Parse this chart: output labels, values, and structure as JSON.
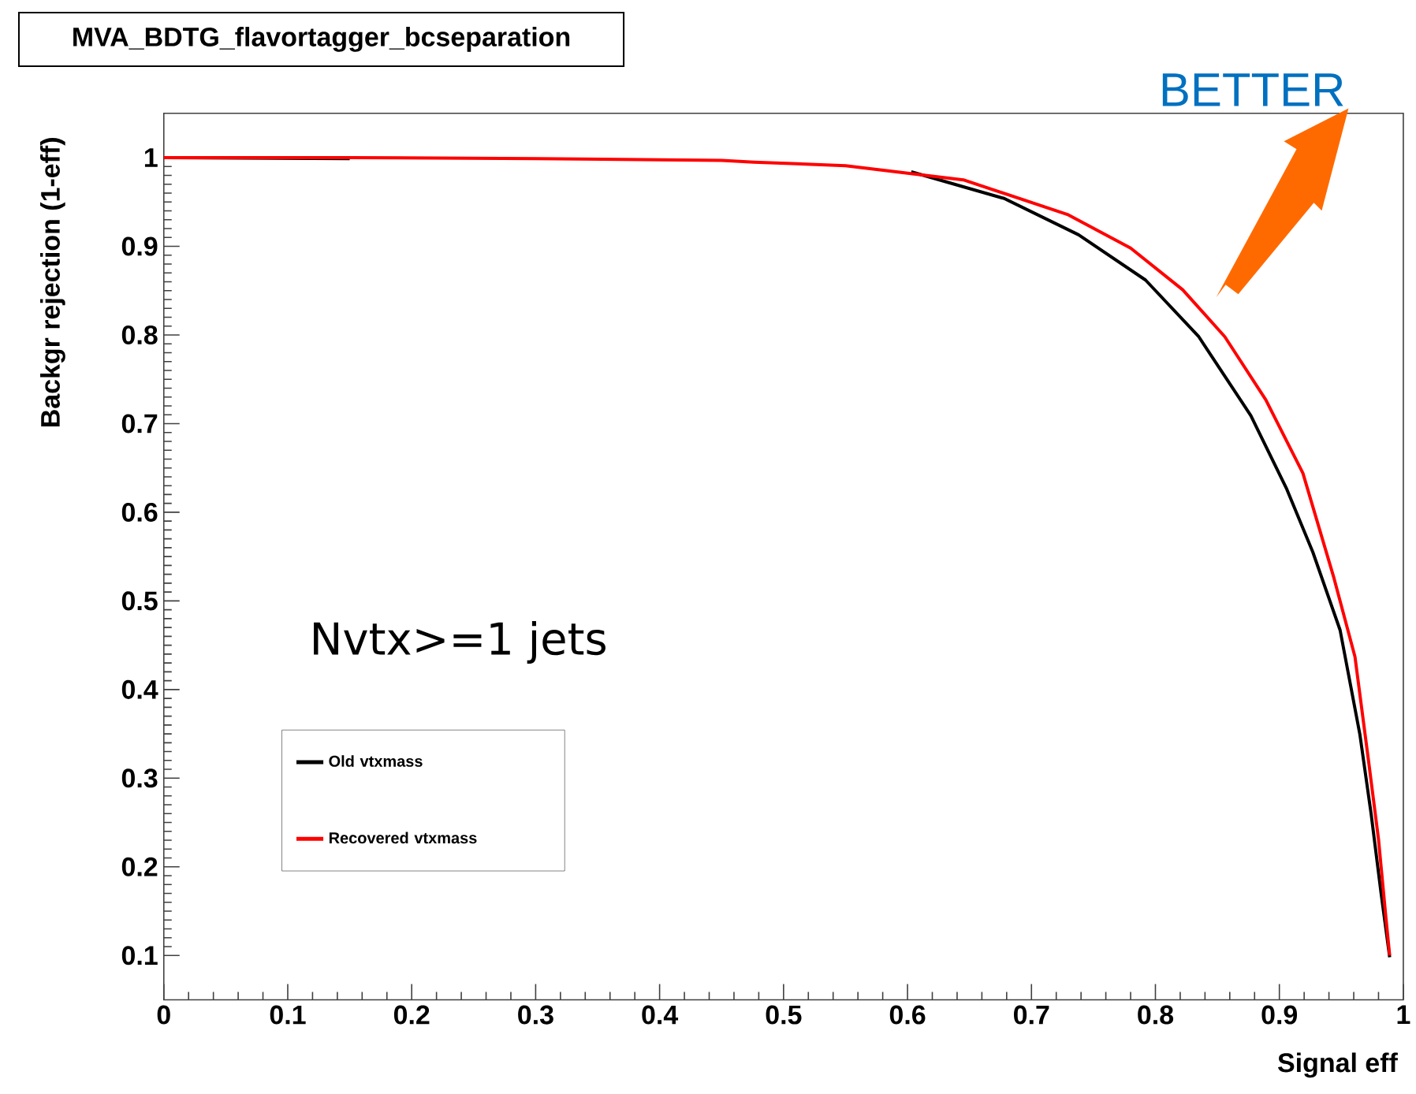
{
  "chart_data": {
    "type": "line",
    "title": "MVA_BDTG_flavortagger_bcseparation",
    "xlabel": "Signal eff",
    "ylabel": "Backgr rejection (1-eff)",
    "annotations": [
      "BETTER",
      "Nvtx>=1 jets"
    ],
    "xlim": [
      0,
      1
    ],
    "ylim": [
      0.05,
      1.05
    ],
    "xticks": [
      0,
      0.1,
      0.2,
      0.3,
      0.4,
      0.5,
      0.6,
      0.7,
      0.8,
      0.9,
      1
    ],
    "yticks": [
      0.1,
      0.2,
      0.3,
      0.4,
      0.5,
      0.6,
      0.7,
      0.8,
      0.9,
      1
    ],
    "grid": false,
    "legend": "bottom left",
    "marker": "none",
    "line_style": "solid",
    "series": [
      {
        "name": "Old vtxmass",
        "color": "#000000",
        "x": [
          0,
          0.15,
          0.3,
          0.45,
          0.476,
          0.55,
          0.603,
          0.678,
          0.738,
          0.792,
          0.835,
          0.877,
          0.906,
          0.927,
          0.949,
          0.965,
          0.974,
          0.982,
          0.989
        ],
        "values": [
          1,
          0.999,
          null,
          null,
          null,
          null,
          0.984,
          0.954,
          0.913,
          0.862,
          0.798,
          0.709,
          0.626,
          0.555,
          0.467,
          0.349,
          0.26,
          0.171,
          0.098
        ]
      },
      {
        "name": "Recovered vtxmass",
        "color": "#ff0000",
        "x": [
          0,
          0.15,
          0.3,
          0.45,
          0.476,
          0.55,
          0.645,
          0.729,
          0.78,
          0.822,
          0.856,
          0.889,
          0.919,
          0.944,
          0.961,
          0.972,
          0.98,
          0.986,
          0.989
        ],
        "values": [
          1,
          1,
          0.999,
          0.997,
          0.995,
          0.991,
          0.975,
          0.936,
          0.898,
          0.851,
          0.798,
          0.727,
          0.644,
          0.526,
          0.437,
          0.319,
          0.231,
          0.142,
          0.1
        ]
      }
    ]
  }
}
